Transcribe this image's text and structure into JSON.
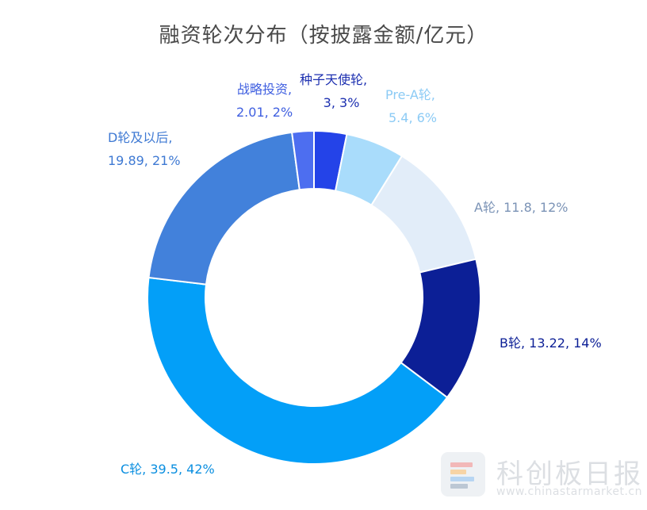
{
  "chart_data": {
    "type": "pie",
    "variant": "donut",
    "title": "融资轮次分布（按披露金额/亿元）",
    "series": [
      {
        "name": "种子天使轮",
        "value": 3,
        "percent_label": "3%",
        "value_label": "3",
        "color": "#2443e8"
      },
      {
        "name": "Pre-A轮",
        "value": 5.4,
        "percent_label": "6%",
        "value_label": "5.4",
        "color": "#a9dcfb"
      },
      {
        "name": "A轮",
        "value": 11.8,
        "percent_label": "12%",
        "value_label": "11.8",
        "color": "#e2edf9"
      },
      {
        "name": "B轮",
        "value": 13.22,
        "percent_label": "14%",
        "value_label": "13.22",
        "color": "#0c1f96"
      },
      {
        "name": "C轮",
        "value": 39.5,
        "percent_label": "42%",
        "value_label": "39.5",
        "color": "#039ff8"
      },
      {
        "name": "D轮及以后",
        "value": 19.89,
        "percent_label": "21%",
        "value_label": "19.89",
        "color": "#4281db"
      },
      {
        "name": "战略投资",
        "value": 2.01,
        "percent_label": "2%",
        "value_label": "2.01",
        "color": "#4d6ef0"
      }
    ],
    "labels": [
      {
        "line1": "种子天使轮,",
        "line2": "3, 3%",
        "color": "#1c2fb0"
      },
      {
        "line1": "Pre-A轮,",
        "line2": "5.4, 6%",
        "color": "#8ccbf5"
      },
      {
        "line1": "A轮, 11.8, 12%",
        "color": "#7b93b6"
      },
      {
        "line1": "B轮, 13.22, 14%",
        "color": "#0c1f96"
      },
      {
        "line1": "C轮, 39.5, 42%",
        "color": "#0b8fe0"
      },
      {
        "line1": "D轮及以后,",
        "line2": "19.89, 21%",
        "color": "#3e79d3"
      },
      {
        "line1": "战略投资,",
        "line2": "2.01, 2%",
        "color": "#3f5fe0"
      }
    ],
    "legend": "none"
  },
  "watermark": {
    "text": "科创板日报",
    "url": "www.chinastarmarket.cn",
    "logo_colors": [
      "#f2b8b8",
      "#f7d4a6",
      "#b7d5f2",
      "#bcc7d4"
    ]
  }
}
